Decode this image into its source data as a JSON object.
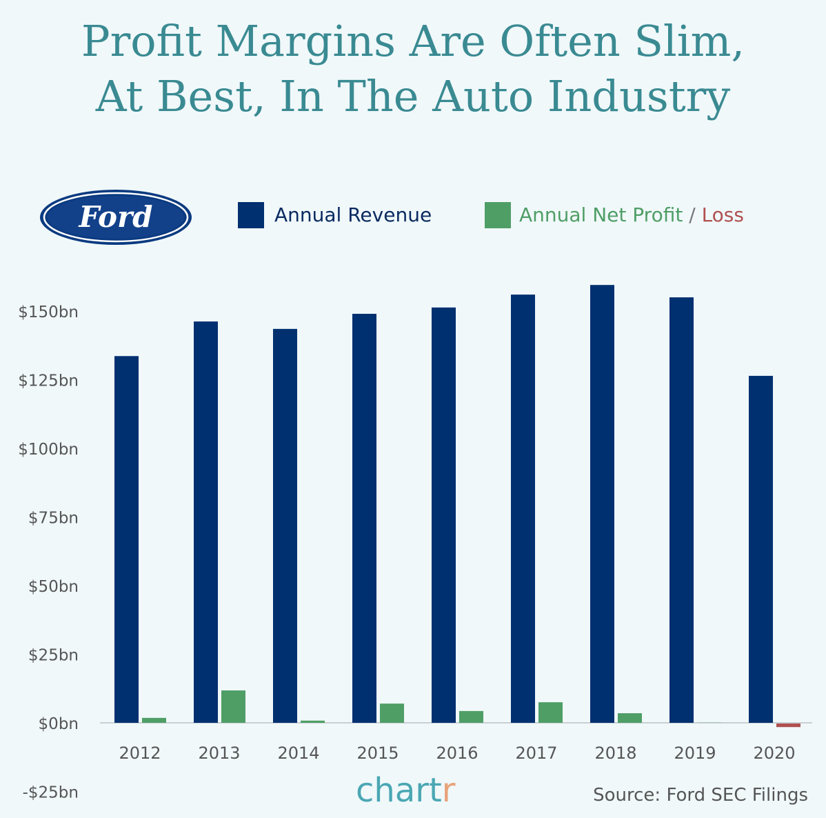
{
  "title_lines": [
    "Profit Margins Are Often Slim,",
    "At Best, In The Auto Industry"
  ],
  "logo_text": "Ford",
  "legend": {
    "revenue": "Annual Revenue",
    "profit": "Annual Net Profit",
    "sep": " / ",
    "loss": "Loss"
  },
  "colors": {
    "revenue": "#003070",
    "profit": "#4f9e66",
    "loss": "#b05050",
    "title": "#3a8a92"
  },
  "chart_data": {
    "type": "bar",
    "title": "Profit Margins Are Often Slim, At Best, In The Auto Industry",
    "xlabel": "",
    "ylabel": "",
    "ylim": [
      -25,
      175
    ],
    "y_ticks": [
      -25,
      0,
      25,
      50,
      75,
      100,
      125,
      150
    ],
    "y_tick_labels": [
      "-$25bn",
      "$0bn",
      "$25bn",
      "$50bn",
      "$75bn",
      "$100bn",
      "$125bn",
      "$150bn"
    ],
    "categories": [
      "2012",
      "2013",
      "2014",
      "2015",
      "2016",
      "2017",
      "2018",
      "2019",
      "2020"
    ],
    "series": [
      {
        "name": "Annual Revenue",
        "values": [
          133.6,
          146.2,
          143.5,
          149.0,
          151.3,
          156.0,
          159.5,
          155.0,
          126.4
        ]
      },
      {
        "name": "Annual Net Profit / Loss",
        "values": [
          1.8,
          11.8,
          0.8,
          7.0,
          4.3,
          7.5,
          3.5,
          0.05,
          -1.3
        ]
      }
    ],
    "legend_position": "top"
  },
  "brand": {
    "main": "chart",
    "accent": "r"
  },
  "source": "Source: Ford SEC Filings"
}
